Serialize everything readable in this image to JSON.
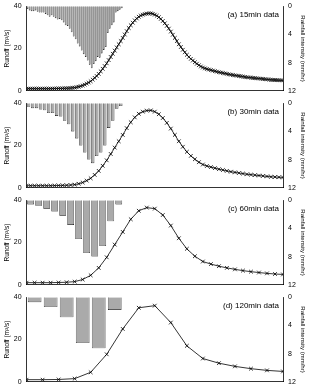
{
  "chart_data": [
    {
      "type": "line",
      "title": "(a) 15min data",
      "ylabel": "Runoff (m³/s)",
      "y2label": "Rainfall intensity (mm/hr)",
      "xlim": [
        0,
        32
      ],
      "ylim": [
        0,
        40
      ],
      "yticks": [
        0,
        20,
        40
      ],
      "y2lim": [
        12,
        0
      ],
      "y2ticks": [
        0,
        4,
        8,
        12
      ],
      "grid": false,
      "tick_labels": "y",
      "series": [
        {
          "type": "bar",
          "axis": "y2",
          "color": "#aaaaaa",
          "x": [
            0.125,
            0.375,
            0.625,
            0.875,
            1.125,
            1.375,
            1.625,
            1.875,
            2.125,
            2.375,
            2.625,
            2.875,
            3.125,
            3.375,
            3.625,
            3.875,
            4.125,
            4.375,
            4.625,
            4.875,
            5.125,
            5.375,
            5.625,
            5.875,
            6.125,
            6.375,
            6.625,
            6.875,
            7.125,
            7.375,
            7.625,
            7.875,
            8.125,
            8.375,
            8.625,
            8.875,
            9.125,
            9.375,
            9.625,
            9.875,
            10.125,
            10.375,
            10.625,
            10.875,
            11.125,
            11.375,
            11.625,
            11.875
          ],
          "values": [
            0.4,
            0.6,
            0.7,
            0.7,
            0.6,
            0.8,
            0.9,
            0.9,
            0.9,
            1.1,
            1.3,
            1.5,
            1.3,
            1.5,
            1.7,
            1.9,
            1.8,
            2.0,
            2.3,
            2.7,
            2.8,
            3.2,
            3.7,
            4.3,
            4.7,
            5.3,
            5.7,
            6.3,
            6.8,
            7.2,
            7.7,
            8.3,
            8.8,
            8.2,
            7.8,
            7.2,
            7.3,
            6.7,
            6.2,
            5.8,
            3.8,
            3.2,
            2.7,
            2.3,
            0.9,
            0.7,
            0.5,
            0.3
          ]
        },
        {
          "type": "line",
          "color": "#000000",
          "marker": "x",
          "x": [
            0,
            0.25,
            0.5,
            0.75,
            1,
            1.25,
            1.5,
            1.75,
            2,
            2.25,
            2.5,
            2.75,
            3,
            3.25,
            3.5,
            3.75,
            4,
            4.25,
            4.5,
            4.75,
            5,
            5.25,
            5.5,
            5.75,
            6,
            6.25,
            6.5,
            6.75,
            7,
            7.25,
            7.5,
            7.75,
            8,
            8.25,
            8.5,
            8.75,
            9,
            9.25,
            9.5,
            9.75,
            10,
            10.25,
            10.5,
            10.75,
            11,
            11.25,
            11.5,
            11.75,
            12,
            12.25,
            12.5,
            12.75,
            13,
            13.25,
            13.5,
            13.75,
            14,
            14.25,
            14.5,
            14.75,
            15,
            15.25,
            15.5,
            15.75,
            16,
            16.25,
            16.5,
            16.75,
            17,
            17.25,
            17.5,
            17.75,
            18,
            18.25,
            18.5,
            18.75,
            19,
            19.25,
            19.5,
            19.75,
            20,
            20.25,
            20.5,
            20.75,
            21,
            21.25,
            21.5,
            21.75,
            22,
            22.25,
            22.5,
            22.75,
            23,
            23.25,
            23.5,
            23.75,
            24,
            24.25,
            24.5,
            24.75,
            25,
            25.25,
            25.5,
            25.75,
            26,
            26.25,
            26.5,
            26.75,
            27,
            27.25,
            27.5,
            27.75,
            28,
            28.25,
            28.5,
            28.75,
            29,
            29.25,
            29.5,
            29.75,
            30,
            30.25,
            30.5,
            30.75,
            31,
            31.25,
            31.5,
            31.75,
            32
          ],
          "values": [
            1.0,
            1.0,
            1.0,
            1.0,
            1.0,
            1.0,
            1.0,
            1.0,
            1.0,
            1.0,
            1.0,
            1.0,
            1.0,
            1.02,
            1.05,
            1.07,
            1.1,
            1.12,
            1.15,
            1.17,
            1.2,
            1.25,
            1.3,
            1.4,
            1.5,
            1.68,
            1.9,
            2.2,
            2.5,
            2.9,
            3.4,
            3.9,
            4.5,
            5.3,
            6.1,
            7,
            8,
            9.2,
            10.4,
            11.7,
            13,
            14.5,
            16,
            17.5,
            19,
            20.5,
            22,
            23.5,
            25,
            26.6,
            28.2,
            29.7,
            31,
            32.2,
            33.3,
            34.2,
            35,
            35.6,
            36,
            36.3,
            36.5,
            36.6,
            36.6,
            36.4,
            36,
            35.5,
            34.8,
            34,
            33,
            31.9,
            30.7,
            29.4,
            28,
            26.5,
            25,
            23.5,
            22,
            20.7,
            19.4,
            18.2,
            17,
            16,
            15.1,
            14.3,
            13.5,
            12.8,
            12.1,
            11.5,
            11,
            10.6,
            10.3,
            10.05,
            9.8,
            9.55,
            9.3,
            9.05,
            8.8,
            8.6,
            8.4,
            8.2,
            8,
            7.8,
            7.6,
            7.45,
            7.3,
            7.15,
            7,
            6.85,
            6.7,
            6.55,
            6.4,
            6.3,
            6.2,
            6.1,
            6,
            5.9,
            5.8,
            5.7,
            5.6,
            5.5,
            5.4,
            5.3,
            5.2,
            5.15,
            5.1,
            5.05,
            5.0,
            4.95,
            4.9
          ]
        }
      ]
    },
    {
      "type": "line",
      "title": "(b) 30min data",
      "ylabel": "Runoff (m³/s)",
      "y2label": "Rainfall intensity (mm/hr)",
      "xlim": [
        0,
        32
      ],
      "ylim": [
        0,
        40
      ],
      "yticks": [
        0,
        20,
        40
      ],
      "y2lim": [
        12,
        0
      ],
      "y2ticks": [
        0,
        4,
        8,
        12
      ],
      "grid": false,
      "tick_labels": "y",
      "series": [
        {
          "type": "bar",
          "axis": "y2",
          "color": "#aaaaaa",
          "x": [
            0.25,
            0.75,
            1.25,
            1.75,
            2.25,
            2.75,
            3.25,
            3.75,
            4.25,
            4.75,
            5.25,
            5.75,
            6.25,
            6.75,
            7.25,
            7.75,
            8.25,
            8.75,
            9.25,
            9.75,
            10.25,
            10.75,
            11.25,
            11.75
          ],
          "values": [
            0.5,
            0.7,
            0.7,
            0.9,
            1.0,
            1.4,
            1.4,
            1.8,
            1.9,
            2.5,
            3.0,
            4.0,
            5.0,
            6.0,
            7.0,
            8.0,
            8.5,
            7.5,
            7.0,
            6.0,
            3.5,
            2.5,
            0.8,
            0.4
          ]
        },
        {
          "type": "line",
          "color": "#000000",
          "marker": "x",
          "x": [
            0,
            0.5,
            1,
            1.5,
            2,
            2.5,
            3,
            3.5,
            4,
            4.5,
            5,
            5.5,
            6,
            6.5,
            7,
            7.5,
            8,
            8.5,
            9,
            9.5,
            10,
            10.5,
            11,
            11.5,
            12,
            12.5,
            13,
            13.5,
            14,
            14.5,
            15,
            15.5,
            16,
            16.5,
            17,
            17.5,
            18,
            18.5,
            19,
            19.5,
            20,
            20.5,
            21,
            21.5,
            22,
            22.5,
            23,
            23.5,
            24,
            24.5,
            25,
            25.5,
            26,
            26.5,
            27,
            27.5,
            28,
            28.5,
            29,
            29.5,
            30,
            30.5,
            31,
            31.5,
            32
          ],
          "values": [
            1.0,
            1.0,
            1.0,
            1.0,
            1.0,
            1.0,
            1.0,
            1.05,
            1.1,
            1.15,
            1.2,
            1.3,
            1.5,
            1.9,
            2.5,
            3.4,
            4.5,
            6.1,
            8,
            10.4,
            13,
            16,
            19,
            22,
            25,
            28.2,
            31,
            33.3,
            35,
            36,
            36.5,
            36.6,
            36,
            34.8,
            33,
            30.7,
            28,
            25,
            22,
            19.4,
            17,
            15.1,
            13.5,
            12.1,
            11,
            10.3,
            9.8,
            9.3,
            8.8,
            8.4,
            8,
            7.6,
            7.3,
            7,
            6.7,
            6.4,
            6.2,
            6,
            5.8,
            5.6,
            5.4,
            5.2,
            5.1,
            5.0,
            4.9
          ]
        }
      ]
    },
    {
      "type": "line",
      "title": "(c) 60min data",
      "ylabel": "Runoff (m³/s)",
      "y2label": "Rainfall intensity (mm/hr)",
      "xlim": [
        0,
        32
      ],
      "ylim": [
        0,
        40
      ],
      "yticks": [
        0,
        20,
        40
      ],
      "y2lim": [
        12,
        0
      ],
      "y2ticks": [
        0,
        4,
        8,
        12
      ],
      "grid": false,
      "tick_labels": "y",
      "series": [
        {
          "type": "bar",
          "axis": "y2",
          "color": "#aaaaaa",
          "x": [
            0.5,
            1.5,
            2.5,
            3.5,
            4.5,
            5.5,
            6.5,
            7.5,
            8.5,
            9.5,
            10.5,
            11.5
          ],
          "values": [
            0.6,
            0.8,
            1.2,
            1.6,
            2.2,
            3.5,
            5.5,
            7.5,
            8,
            6.5,
            3,
            0.6
          ]
        },
        {
          "type": "line",
          "color": "#000000",
          "marker": "x",
          "x": [
            0,
            1,
            2,
            3,
            4,
            5,
            6,
            7,
            8,
            9,
            10,
            11,
            12,
            13,
            14,
            15,
            16,
            17,
            18,
            19,
            20,
            21,
            22,
            23,
            24,
            25,
            26,
            27,
            28,
            29,
            30,
            31,
            32
          ],
          "values": [
            1.0,
            1.0,
            1.0,
            1.0,
            1.1,
            1.2,
            1.5,
            2.5,
            4.5,
            8,
            13,
            19,
            25,
            31,
            35,
            36.5,
            36,
            33,
            28,
            22,
            17,
            13.5,
            11,
            9.8,
            8.8,
            8,
            7.3,
            6.7,
            6.2,
            5.8,
            5.4,
            5.1,
            4.9
          ]
        }
      ]
    },
    {
      "type": "line",
      "title": "(d) 120min data",
      "ylabel": "Runoff (m³/s)",
      "y2label": "Rainfall intensity (mm/hr)",
      "xlim": [
        0,
        32
      ],
      "ylim": [
        0,
        40
      ],
      "yticks": [
        0,
        20,
        40
      ],
      "y2lim": [
        12,
        0
      ],
      "y2ticks": [
        0,
        4,
        8,
        12
      ],
      "grid": false,
      "tick_labels": "y",
      "series": [
        {
          "type": "bar",
          "axis": "y2",
          "color": "#aaaaaa",
          "x": [
            1,
            3,
            5,
            7,
            9,
            11
          ],
          "values": [
            0.7,
            1.4,
            2.85,
            6.5,
            7.25,
            1.8
          ]
        },
        {
          "type": "line",
          "color": "#000000",
          "marker": "x",
          "x": [
            0,
            2,
            4,
            6,
            8,
            10,
            12,
            14,
            16,
            18,
            20,
            22,
            24,
            26,
            28,
            30,
            32
          ],
          "values": [
            1.0,
            1.0,
            1.1,
            1.5,
            4.5,
            13,
            25,
            35,
            36,
            28,
            17,
            11,
            8.8,
            7.3,
            6.2,
            5.4,
            4.9
          ]
        }
      ]
    }
  ]
}
